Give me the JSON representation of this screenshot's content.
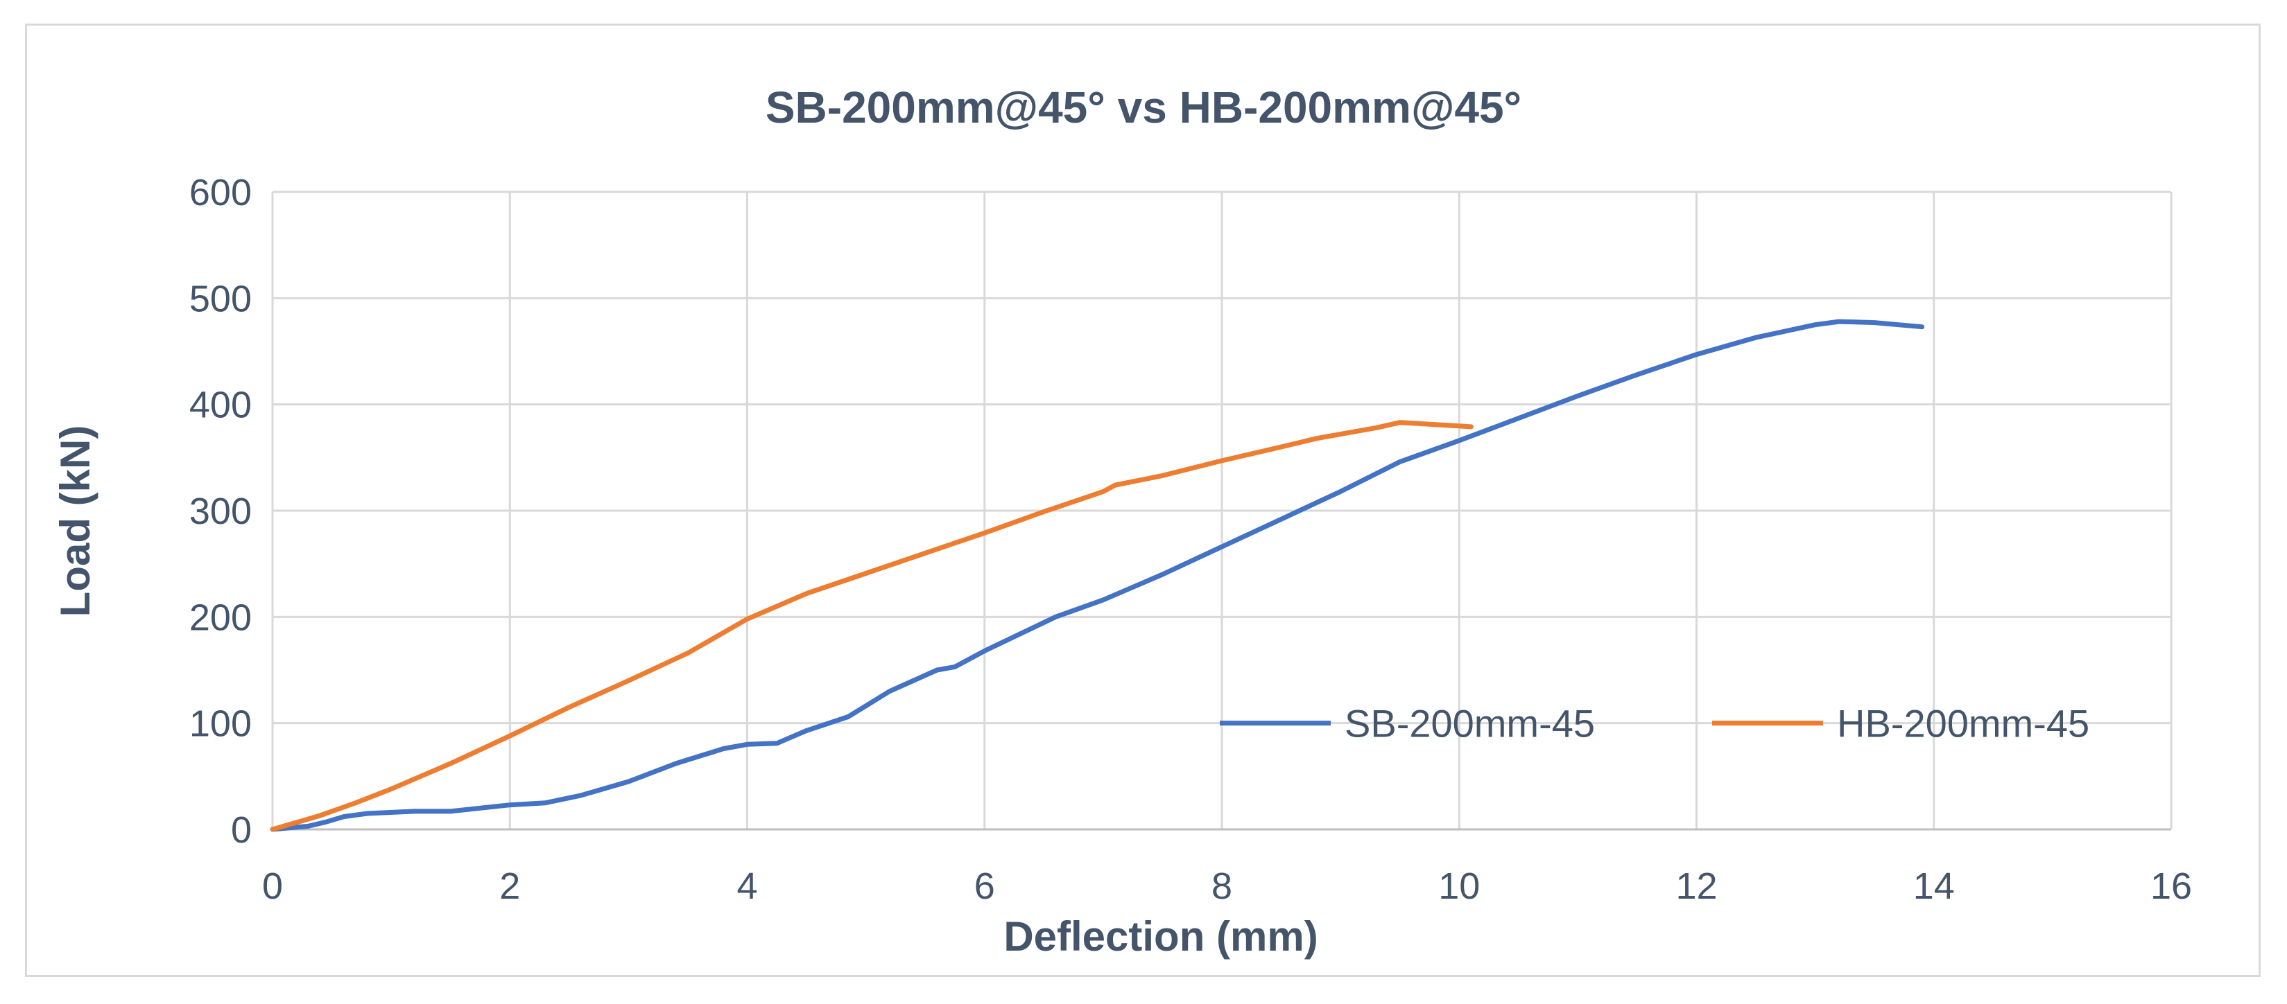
{
  "chart_data": {
    "type": "line",
    "title": "SB-200mm@45° vs HB-200mm@45°",
    "xlabel": "Deflection (mm)",
    "ylabel": "Load (kN)",
    "xlim": [
      0,
      16
    ],
    "ylim": [
      0,
      600
    ],
    "xticks": [
      "0",
      "2",
      "4",
      "6",
      "8",
      "10",
      "12",
      "14",
      "16"
    ],
    "yticks": [
      "0",
      "100",
      "200",
      "300",
      "400",
      "500",
      "600"
    ],
    "grid": true,
    "legend_position": "lower-right inside plot",
    "series": [
      {
        "name": "SB-200mm-45",
        "color": "#4472c4",
        "points": [
          [
            0,
            0
          ],
          [
            0.3,
            3
          ],
          [
            0.45,
            7
          ],
          [
            0.6,
            12
          ],
          [
            0.8,
            15
          ],
          [
            1.2,
            17
          ],
          [
            1.5,
            17
          ],
          [
            2.0,
            23
          ],
          [
            2.3,
            25
          ],
          [
            2.6,
            32
          ],
          [
            3.0,
            45
          ],
          [
            3.4,
            62
          ],
          [
            3.8,
            76
          ],
          [
            4.0,
            80
          ],
          [
            4.25,
            81
          ],
          [
            4.5,
            93
          ],
          [
            4.85,
            106
          ],
          [
            5.2,
            130
          ],
          [
            5.6,
            150
          ],
          [
            5.75,
            153
          ],
          [
            6.0,
            168
          ],
          [
            6.6,
            200
          ],
          [
            7.0,
            216
          ],
          [
            7.5,
            240
          ],
          [
            8.0,
            266
          ],
          [
            8.5,
            292
          ],
          [
            9.0,
            318
          ],
          [
            9.5,
            346
          ],
          [
            10.0,
            366
          ],
          [
            10.5,
            387
          ],
          [
            11.0,
            408
          ],
          [
            11.5,
            428
          ],
          [
            12.0,
            447
          ],
          [
            12.5,
            463
          ],
          [
            13.0,
            475
          ],
          [
            13.2,
            478
          ],
          [
            13.5,
            477
          ],
          [
            13.9,
            473
          ]
        ]
      },
      {
        "name": "HB-200mm-45",
        "color": "#ed7d31",
        "points": [
          [
            0,
            0
          ],
          [
            0.4,
            13
          ],
          [
            0.7,
            25
          ],
          [
            1.0,
            38
          ],
          [
            1.5,
            62
          ],
          [
            2.0,
            88
          ],
          [
            2.5,
            115
          ],
          [
            3.0,
            140
          ],
          [
            3.5,
            166
          ],
          [
            4.0,
            198
          ],
          [
            4.5,
            222
          ],
          [
            5.0,
            241
          ],
          [
            5.5,
            260
          ],
          [
            6.0,
            279
          ],
          [
            6.5,
            299
          ],
          [
            7.0,
            318
          ],
          [
            7.1,
            324
          ],
          [
            7.5,
            333
          ],
          [
            8.0,
            347
          ],
          [
            8.5,
            360
          ],
          [
            8.8,
            368
          ],
          [
            9.0,
            372
          ],
          [
            9.3,
            378
          ],
          [
            9.5,
            383
          ],
          [
            9.8,
            381
          ],
          [
            10.1,
            379
          ]
        ]
      }
    ]
  }
}
